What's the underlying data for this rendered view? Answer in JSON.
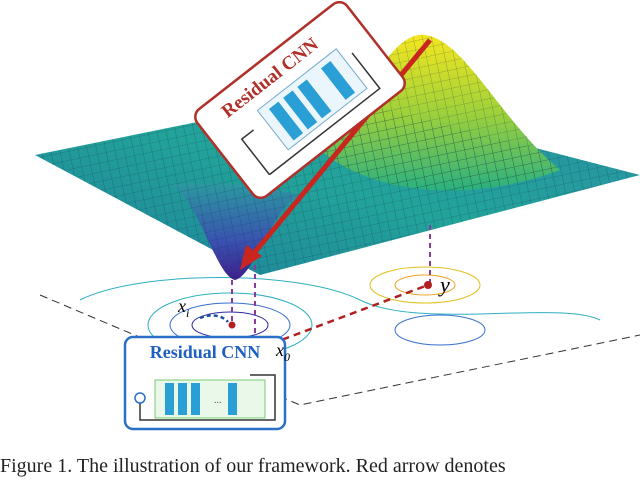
{
  "figure": {
    "top_block": {
      "label": "Residual CNN"
    },
    "bottom_block": {
      "label": "Residual CNN"
    },
    "points": {
      "y": {
        "base": "y"
      },
      "xi": {
        "base": "x",
        "sub": "i"
      },
      "x0": {
        "base": "x",
        "sub": "0"
      }
    },
    "ellipsis": "..."
  },
  "caption": "Figure 1. The illustration of our framework. Red arrow denotes"
}
